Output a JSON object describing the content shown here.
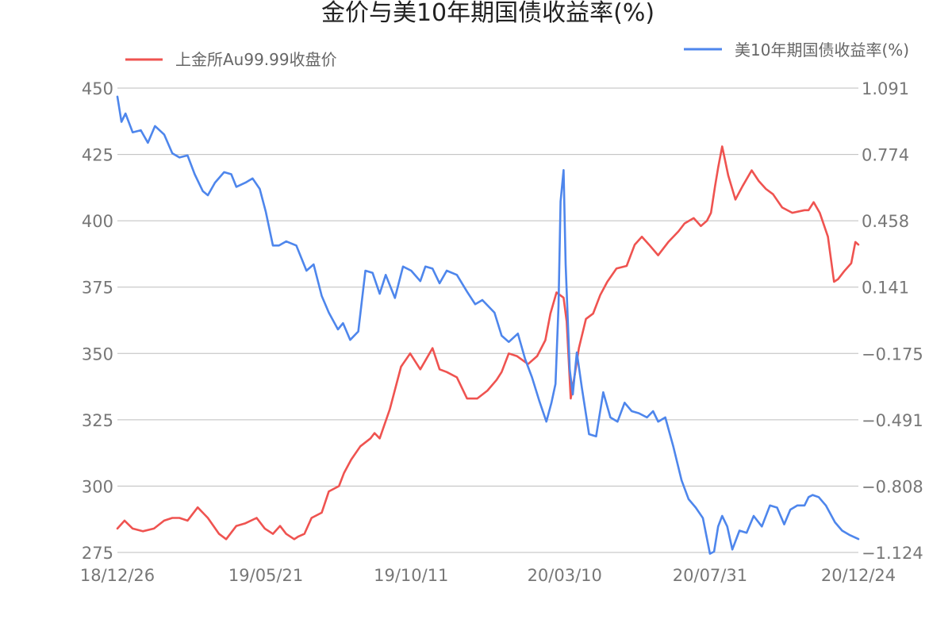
{
  "chart_data": {
    "type": "line",
    "title": "金价与美10年期国债收益率(%)",
    "x_tick_labels": [
      "18/12/26",
      "19/05/21",
      "19/10/11",
      "20/03/10",
      "20/07/31",
      "20/12/24"
    ],
    "x_tick_dates": [
      "2018-12-26",
      "2019-05-21",
      "2019-10-11",
      "2020-03-10",
      "2020-07-31",
      "2020-12-24"
    ],
    "left_axis": {
      "ylim": [
        275,
        450
      ],
      "ticks": [
        "450",
        "425",
        "400",
        "375",
        "350",
        "325",
        "300",
        "275"
      ]
    },
    "right_axis": {
      "ylim": [
        -1.124,
        1.091
      ],
      "ticks": [
        "1.091",
        "0.774",
        "0.458",
        "0.141",
        "−0.175",
        "−0.491",
        "−0.808",
        "−1.124"
      ]
    },
    "grid": true,
    "legend_position": "top",
    "series": [
      {
        "name": "上金所Au99.99收盘价",
        "axis": "left",
        "color": "#ef5350",
        "x": [
          "2018-12-26",
          "2019-01-02",
          "2019-01-10",
          "2019-01-20",
          "2019-01-31",
          "2019-02-10",
          "2019-02-18",
          "2019-02-25",
          "2019-03-05",
          "2019-03-15",
          "2019-03-25",
          "2019-04-05",
          "2019-04-12",
          "2019-04-22",
          "2019-05-01",
          "2019-05-12",
          "2019-05-20",
          "2019-05-28",
          "2019-06-04",
          "2019-06-10",
          "2019-06-18",
          "2019-06-22",
          "2019-06-28",
          "2019-07-05",
          "2019-07-15",
          "2019-07-22",
          "2019-08-01",
          "2019-08-06",
          "2019-08-13",
          "2019-08-22",
          "2019-09-01",
          "2019-09-05",
          "2019-09-10",
          "2019-09-20",
          "2019-10-01",
          "2019-10-10",
          "2019-10-20",
          "2019-11-01",
          "2019-11-08",
          "2019-11-15",
          "2019-11-25",
          "2019-12-05",
          "2019-12-15",
          "2019-12-25",
          "2020-01-03",
          "2020-01-08",
          "2020-01-15",
          "2020-01-23",
          "2020-02-03",
          "2020-02-12",
          "2020-02-20",
          "2020-02-25",
          "2020-03-02",
          "2020-03-09",
          "2020-03-12",
          "2020-03-16",
          "2020-03-20",
          "2020-03-24",
          "2020-03-31",
          "2020-04-07",
          "2020-04-14",
          "2020-04-21",
          "2020-04-30",
          "2020-05-10",
          "2020-05-18",
          "2020-05-25",
          "2020-06-01",
          "2020-06-10",
          "2020-06-20",
          "2020-06-30",
          "2020-07-06",
          "2020-07-15",
          "2020-07-22",
          "2020-07-28",
          "2020-08-01",
          "2020-08-05",
          "2020-08-08",
          "2020-08-12",
          "2020-08-18",
          "2020-08-25",
          "2020-09-01",
          "2020-09-10",
          "2020-09-17",
          "2020-09-24",
          "2020-10-01",
          "2020-10-10",
          "2020-10-20",
          "2020-11-01",
          "2020-11-05",
          "2020-11-10",
          "2020-11-16",
          "2020-11-24",
          "2020-11-30",
          "2020-12-04",
          "2020-12-10",
          "2020-12-17",
          "2020-12-21",
          "2020-12-24"
        ],
        "values": [
          284,
          287,
          284,
          283,
          284,
          287,
          288,
          288,
          287,
          292,
          288,
          282,
          280,
          285,
          286,
          288,
          284,
          282,
          285,
          282,
          280,
          281,
          282,
          288,
          290,
          298,
          300,
          305,
          310,
          315,
          318,
          320,
          318,
          329,
          345,
          350,
          344,
          352,
          344,
          343,
          341,
          333,
          333,
          336,
          340,
          343,
          350,
          349,
          346,
          349,
          355,
          365,
          373,
          371,
          362,
          333,
          342,
          352,
          363,
          365,
          372,
          377,
          382,
          383,
          391,
          394,
          391,
          387,
          392,
          396,
          399,
          401,
          398,
          400,
          403,
          413,
          420,
          428,
          417,
          408,
          413,
          419,
          415,
          412,
          410,
          405,
          403,
          404,
          404,
          407,
          403,
          394,
          377,
          378,
          381,
          384,
          392,
          391
        ]
      },
      {
        "name": "美10年期国债收益率(%)",
        "axis": "right",
        "color": "#4e86ec",
        "x": [
          "2018-12-26",
          "2018-12-30",
          "2019-01-03",
          "2019-01-10",
          "2019-01-18",
          "2019-01-25",
          "2019-02-01",
          "2019-02-10",
          "2019-02-18",
          "2019-02-25",
          "2019-03-05",
          "2019-03-12",
          "2019-03-20",
          "2019-03-25",
          "2019-04-01",
          "2019-04-10",
          "2019-04-17",
          "2019-04-22",
          "2019-05-01",
          "2019-05-08",
          "2019-05-15",
          "2019-05-21",
          "2019-05-28",
          "2019-06-03",
          "2019-06-10",
          "2019-06-20",
          "2019-06-30",
          "2019-07-07",
          "2019-07-15",
          "2019-07-22",
          "2019-07-31",
          "2019-08-05",
          "2019-08-12",
          "2019-08-20",
          "2019-08-27",
          "2019-09-03",
          "2019-09-10",
          "2019-09-16",
          "2019-09-25",
          "2019-10-03",
          "2019-10-11",
          "2019-10-20",
          "2019-10-25",
          "2019-11-01",
          "2019-11-08",
          "2019-11-15",
          "2019-11-25",
          "2019-12-05",
          "2019-12-13",
          "2019-12-20",
          "2020-01-01",
          "2020-01-08",
          "2020-01-15",
          "2020-01-24",
          "2020-01-31",
          "2020-02-07",
          "2020-02-14",
          "2020-02-21",
          "2020-02-26",
          "2020-03-01",
          "2020-03-04",
          "2020-03-06",
          "2020-03-09",
          "2020-03-11",
          "2020-03-15",
          "2020-03-18",
          "2020-03-22",
          "2020-03-27",
          "2020-04-03",
          "2020-04-10",
          "2020-04-17",
          "2020-04-24",
          "2020-05-01",
          "2020-05-08",
          "2020-05-15",
          "2020-05-22",
          "2020-05-30",
          "2020-06-05",
          "2020-06-10",
          "2020-06-17",
          "2020-06-25",
          "2020-07-03",
          "2020-07-10",
          "2020-07-17",
          "2020-07-24",
          "2020-07-31",
          "2020-08-04",
          "2020-08-08",
          "2020-08-12",
          "2020-08-17",
          "2020-08-22",
          "2020-08-29",
          "2020-09-05",
          "2020-09-12",
          "2020-09-20",
          "2020-09-28",
          "2020-10-05",
          "2020-10-12",
          "2020-10-18",
          "2020-10-25",
          "2020-11-01",
          "2020-11-05",
          "2020-11-09",
          "2020-11-15",
          "2020-11-22",
          "2020-12-01",
          "2020-12-08",
          "2020-12-15",
          "2020-12-24"
        ],
        "values": [
          1.05,
          0.93,
          0.97,
          0.88,
          0.89,
          0.83,
          0.91,
          0.87,
          0.78,
          0.76,
          0.77,
          0.68,
          0.6,
          0.58,
          0.64,
          0.69,
          0.68,
          0.62,
          0.64,
          0.66,
          0.61,
          0.5,
          0.34,
          0.34,
          0.36,
          0.34,
          0.22,
          0.25,
          0.1,
          0.02,
          -0.06,
          -0.03,
          -0.11,
          -0.07,
          0.22,
          0.21,
          0.11,
          0.2,
          0.09,
          0.24,
          0.22,
          0.17,
          0.24,
          0.23,
          0.16,
          0.22,
          0.2,
          0.12,
          0.06,
          0.08,
          0.02,
          -0.09,
          -0.12,
          -0.08,
          -0.2,
          -0.29,
          -0.4,
          -0.5,
          -0.41,
          -0.32,
          0.05,
          0.55,
          0.7,
          0.25,
          -0.25,
          -0.37,
          -0.17,
          -0.34,
          -0.56,
          -0.57,
          -0.36,
          -0.48,
          -0.5,
          -0.41,
          -0.45,
          -0.46,
          -0.48,
          -0.45,
          -0.5,
          -0.48,
          -0.62,
          -0.78,
          -0.87,
          -0.91,
          -0.96,
          -1.13,
          -1.12,
          -1.0,
          -0.95,
          -1.0,
          -1.11,
          -1.02,
          -1.03,
          -0.95,
          -1.0,
          -0.9,
          -0.91,
          -0.99,
          -0.92,
          -0.9,
          -0.9,
          -0.86,
          -0.85,
          -0.86,
          -0.9,
          -0.98,
          -1.02,
          -1.04,
          -1.06
        ]
      }
    ]
  }
}
